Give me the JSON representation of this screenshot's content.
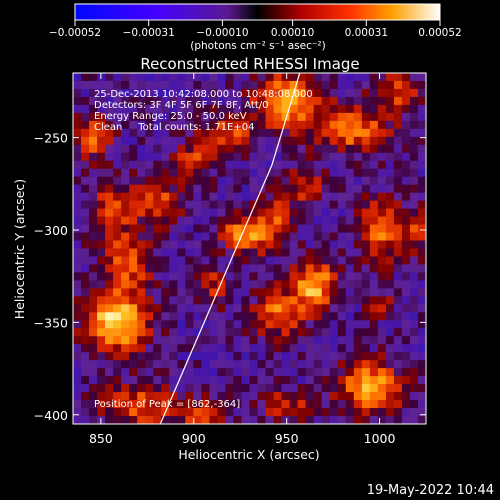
{
  "chart_data": {
    "type": "heatmap",
    "title": "Reconstructed RHESSI Image",
    "xlabel": "Heliocentric X (arcsec)",
    "ylabel": "Heliocentric Y (arcsec)",
    "xlim": [
      835,
      1025
    ],
    "ylim": [
      -405,
      -215
    ],
    "x_ticks": [
      850,
      900,
      950,
      1000
    ],
    "x_tick_labels": [
      "850",
      "900",
      "950",
      "1000"
    ],
    "y_ticks": [
      -250,
      -300,
      -350,
      -400
    ],
    "y_tick_labels": [
      "−250",
      "−300",
      "−350",
      "−400"
    ],
    "colorbar": {
      "min": -0.00052,
      "max": 0.00052,
      "ticks": [
        -0.00052,
        -0.00031,
        -0.0001,
        0.0001,
        0.00031,
        0.00052
      ],
      "tick_labels": [
        "−0.00052",
        "−0.00031",
        "−0.00010",
        "0.00010",
        "0.00031",
        "0.00052"
      ],
      "unit_label": "(photons cm⁻² s⁻¹ asec⁻²)"
    },
    "annotations": {
      "line1": "25-Dec-2013 10:42:08.000 to 10:48:08.000",
      "line2": "Detectors: 3F 4F 5F 6F 7F 8F, Att/0",
      "line3": "Energy Range: 25.0 - 50.0 keV",
      "line4": "Clean     Total counts: 1.71E+04",
      "peak": "Position of Peak = [862,-364]"
    },
    "peak_position": [
      862,
      -364
    ],
    "limb_curve": {
      "x": [
        882,
        897,
        912,
        927,
        942,
        952,
        957
      ],
      "y": [
        -405,
        -370,
        -335,
        -300,
        -265,
        -232,
        -215
      ]
    },
    "sources": [
      {
        "x": 858,
        "y": -350,
        "sx": 12,
        "sy": 11,
        "amp": 1.0
      },
      {
        "x": 865,
        "y": -318,
        "sx": 9,
        "sy": 10,
        "amp": 0.55
      },
      {
        "x": 855,
        "y": -290,
        "sx": 8,
        "sy": 12,
        "amp": 0.5
      },
      {
        "x": 845,
        "y": -250,
        "sx": 7,
        "sy": 8,
        "amp": 0.6
      },
      {
        "x": 880,
        "y": -285,
        "sx": 10,
        "sy": 8,
        "amp": 0.55
      },
      {
        "x": 870,
        "y": -395,
        "sx": 14,
        "sy": 8,
        "amp": 0.55
      },
      {
        "x": 905,
        "y": -400,
        "sx": 9,
        "sy": 6,
        "amp": 0.45
      },
      {
        "x": 900,
        "y": -262,
        "sx": 8,
        "sy": 7,
        "amp": 0.45
      },
      {
        "x": 918,
        "y": -248,
        "sx": 9,
        "sy": 7,
        "amp": 0.55
      },
      {
        "x": 930,
        "y": -302,
        "sx": 10,
        "sy": 7,
        "amp": 0.8
      },
      {
        "x": 945,
        "y": -290,
        "sx": 7,
        "sy": 7,
        "amp": 0.45
      },
      {
        "x": 950,
        "y": -230,
        "sx": 12,
        "sy": 10,
        "amp": 0.8
      },
      {
        "x": 985,
        "y": -245,
        "sx": 14,
        "sy": 9,
        "amp": 0.65
      },
      {
        "x": 1010,
        "y": -225,
        "sx": 8,
        "sy": 8,
        "amp": 0.5
      },
      {
        "x": 965,
        "y": -330,
        "sx": 8,
        "sy": 10,
        "amp": 0.8
      },
      {
        "x": 945,
        "y": -345,
        "sx": 9,
        "sy": 9,
        "amp": 0.6
      },
      {
        "x": 960,
        "y": -275,
        "sx": 7,
        "sy": 7,
        "amp": 0.45
      },
      {
        "x": 1000,
        "y": -300,
        "sx": 8,
        "sy": 12,
        "amp": 0.6
      },
      {
        "x": 1020,
        "y": -300,
        "sx": 6,
        "sy": 9,
        "amp": 0.45
      },
      {
        "x": 995,
        "y": -385,
        "sx": 12,
        "sy": 10,
        "amp": 0.75
      },
      {
        "x": 950,
        "y": -395,
        "sx": 10,
        "sy": 6,
        "amp": 0.4
      },
      {
        "x": 1000,
        "y": -340,
        "sx": 6,
        "sy": 6,
        "amp": 0.35
      },
      {
        "x": 910,
        "y": -330,
        "sx": 6,
        "sy": 8,
        "amp": 0.4
      }
    ]
  },
  "footer": {
    "timestamp": "19-May-2022 10:44"
  }
}
